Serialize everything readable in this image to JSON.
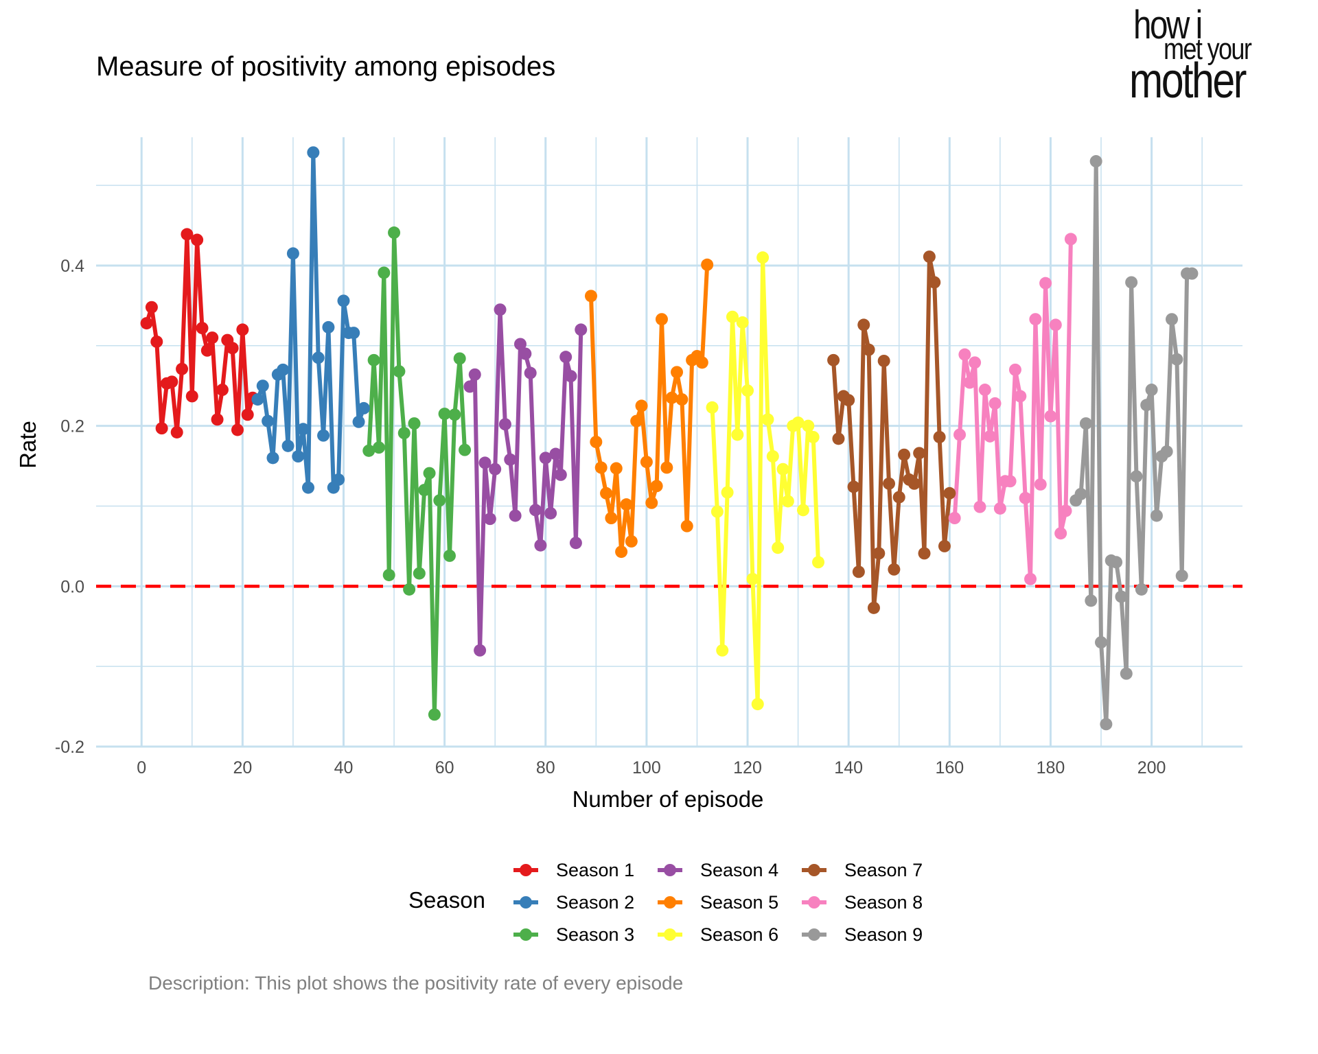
{
  "title": "Measure of positivity among episodes",
  "caption": "Description: This plot shows the positivity rate of every episode",
  "logo": {
    "line1": "how i",
    "line2": "met your",
    "line3": "mother"
  },
  "colors": {
    "grid": "#c6e0ef",
    "zero_line": "#ff0000",
    "text": "#000000",
    "tick_text": "#4d4d4d",
    "caption": "#808080"
  },
  "chart_data": {
    "type": "line",
    "xlabel": "Number of episode",
    "ylabel": "Rate",
    "xlim": [
      -9,
      218
    ],
    "ylim": [
      -0.2,
      0.56
    ],
    "x_ticks": [
      0,
      20,
      40,
      60,
      80,
      100,
      120,
      140,
      160,
      180,
      200
    ],
    "y_ticks": [
      -0.2,
      0.0,
      0.2,
      0.4
    ],
    "y_tick_labels": [
      "-0.2",
      "0.0",
      "0.2",
      "0.4"
    ],
    "grid": true,
    "reference_line": {
      "y": 0,
      "style": "dashed",
      "color": "#ff0000"
    },
    "legend_title": "Season",
    "legend_position": "bottom",
    "series": [
      {
        "name": "Season 1",
        "color": "#e41a1c",
        "x_start": 1,
        "values": [
          0.328,
          0.348,
          0.305,
          0.197,
          0.253,
          0.255,
          0.192,
          0.271,
          0.439,
          0.237,
          0.432,
          0.322,
          0.294,
          0.31,
          0.208,
          0.245,
          0.307,
          0.297,
          0.195,
          0.32,
          0.214,
          0.235
        ]
      },
      {
        "name": "Season 2",
        "color": "#377eb8",
        "x_start": 23,
        "values": [
          0.233,
          0.25,
          0.206,
          0.16,
          0.264,
          0.27,
          0.175,
          0.415,
          0.162,
          0.196,
          0.123,
          0.541,
          0.285,
          0.188,
          0.323,
          0.123,
          0.133,
          0.356,
          0.316,
          0.316,
          0.205,
          0.222
        ]
      },
      {
        "name": "Season 3",
        "color": "#4daf4a",
        "x_start": 45,
        "values": [
          0.169,
          0.282,
          0.173,
          0.391,
          0.014,
          0.441,
          0.268,
          0.191,
          -0.004,
          0.203,
          0.016,
          0.12,
          0.141,
          -0.16,
          0.107,
          0.215,
          0.038,
          0.214,
          0.284,
          0.17
        ]
      },
      {
        "name": "Season 4",
        "color": "#984ea3",
        "x_start": 65,
        "values": [
          0.249,
          0.264,
          -0.08,
          0.154,
          0.084,
          0.146,
          0.345,
          0.202,
          0.158,
          0.088,
          0.302,
          0.29,
          0.266,
          0.095,
          0.051,
          0.16,
          0.091,
          0.165,
          0.139,
          0.286,
          0.262,
          0.054,
          0.32
        ]
      },
      {
        "name": "Season 5",
        "color": "#ff7f00",
        "x_start": 89,
        "values": [
          0.362,
          0.18,
          0.148,
          0.116,
          0.085,
          0.147,
          0.043,
          0.102,
          0.056,
          0.206,
          0.225,
          0.155,
          0.104,
          0.125,
          0.333,
          0.148,
          0.235,
          0.267,
          0.233,
          0.075,
          0.282,
          0.287,
          0.279,
          0.401
        ]
      },
      {
        "name": "Season 6",
        "color": "#ffff33",
        "x_start": 113,
        "values": [
          0.223,
          0.093,
          -0.08,
          0.117,
          0.336,
          0.189,
          0.329,
          0.244,
          0.009,
          -0.147,
          0.41,
          0.208,
          0.162,
          0.048,
          0.146,
          0.106,
          0.2,
          0.204,
          0.095,
          0.2,
          0.186,
          0.03
        ]
      },
      {
        "name": "Season 7",
        "color": "#a65628",
        "x_start": 137,
        "values": [
          0.282,
          0.184,
          0.237,
          0.232,
          0.124,
          0.018,
          0.326,
          0.295,
          -0.027,
          0.041,
          0.281,
          0.128,
          0.021,
          0.111,
          0.164,
          0.133,
          0.128,
          0.166,
          0.041,
          0.411,
          0.379,
          0.186,
          0.05,
          0.116
        ]
      },
      {
        "name": "Season 8",
        "color": "#f781bf",
        "x_start": 161,
        "values": [
          0.085,
          0.189,
          0.289,
          0.254,
          0.279,
          0.099,
          0.245,
          0.187,
          0.228,
          0.097,
          0.131,
          0.131,
          0.27,
          0.237,
          0.11,
          0.009,
          0.333,
          0.127,
          0.378,
          0.212,
          0.326,
          0.066,
          0.094,
          0.433
        ]
      },
      {
        "name": "Season 9",
        "color": "#999999",
        "x_start": 185,
        "values": [
          0.107,
          0.115,
          0.203,
          -0.018,
          0.53,
          -0.07,
          -0.172,
          0.032,
          0.03,
          -0.013,
          -0.109,
          0.379,
          0.137,
          -0.004,
          0.226,
          0.245,
          0.088,
          0.162,
          0.168,
          0.333,
          0.283,
          0.013,
          0.39,
          0.39
        ]
      }
    ]
  }
}
